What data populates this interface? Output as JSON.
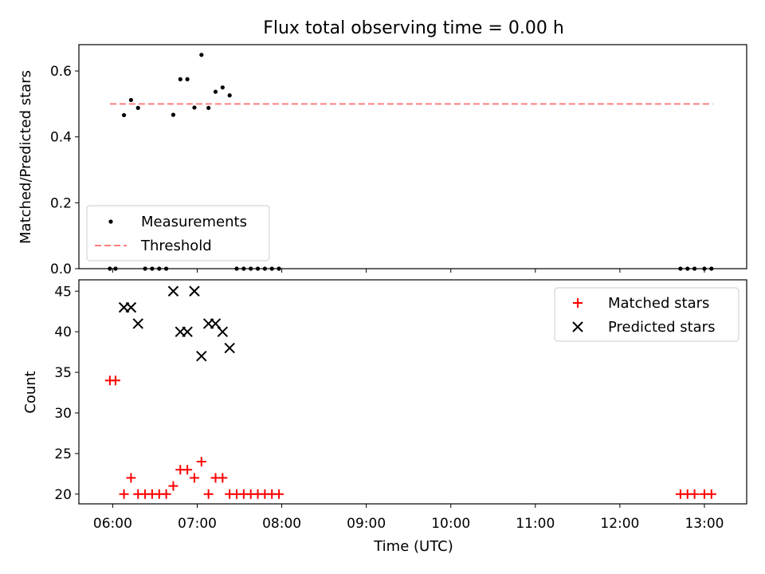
{
  "figure": {
    "title": "Flux total observing time = 0.00 h"
  },
  "chart_data": [
    {
      "type": "scatter",
      "ylabel": "Matched/Predicted stars",
      "xlim": [
        "05:36",
        "13:30"
      ],
      "ylim": [
        0,
        0.68
      ],
      "yticks": [
        0.0,
        0.2,
        0.4,
        0.6
      ],
      "ytick_labels": [
        "0.0",
        "0.2",
        "0.4",
        "0.6"
      ],
      "grid": false,
      "legend_position": "lower-left",
      "series": [
        {
          "name": "Measurements",
          "marker": "dot",
          "color": "#000000",
          "points": [
            [
              "05:58",
              0.0
            ],
            [
              "06:02",
              0.0
            ],
            [
              "06:08",
              0.466
            ],
            [
              "06:13",
              0.512
            ],
            [
              "06:18",
              0.488
            ],
            [
              "06:23",
              0.0
            ],
            [
              "06:28",
              0.0
            ],
            [
              "06:33",
              0.0
            ],
            [
              "06:38",
              0.0
            ],
            [
              "06:43",
              0.467
            ],
            [
              "06:48",
              0.575
            ],
            [
              "06:53",
              0.575
            ],
            [
              "06:58",
              0.489
            ],
            [
              "07:03",
              0.649
            ],
            [
              "07:08",
              0.488
            ],
            [
              "07:13",
              0.537
            ],
            [
              "07:18",
              0.55
            ],
            [
              "07:23",
              0.526
            ],
            [
              "07:28",
              0.0
            ],
            [
              "07:33",
              0.0
            ],
            [
              "07:38",
              0.0
            ],
            [
              "07:43",
              0.0
            ],
            [
              "07:48",
              0.0
            ],
            [
              "07:53",
              0.0
            ],
            [
              "07:58",
              0.0
            ],
            [
              "12:43",
              0.0
            ],
            [
              "12:48",
              0.0
            ],
            [
              "12:53",
              0.0
            ],
            [
              "13:00",
              0.0
            ],
            [
              "13:05",
              0.0
            ]
          ]
        },
        {
          "name": "Threshold",
          "style": "dashed",
          "color": "#ff7f7f",
          "points": [
            [
              "05:58",
              0.5
            ],
            [
              "13:06",
              0.5
            ]
          ]
        }
      ]
    },
    {
      "type": "scatter",
      "xlabel": "Time (UTC)",
      "ylabel": "Count",
      "xlim": [
        "05:36",
        "13:30"
      ],
      "ylim": [
        18.8,
        46.4
      ],
      "xtick_labels": [
        "06:00",
        "07:00",
        "08:00",
        "09:00",
        "10:00",
        "11:00",
        "12:00",
        "13:00"
      ],
      "yticks": [
        20,
        25,
        30,
        35,
        40,
        45
      ],
      "ytick_labels": [
        "20",
        "25",
        "30",
        "35",
        "40",
        "45"
      ],
      "grid": false,
      "legend_position": "upper-right",
      "series": [
        {
          "name": "Matched stars",
          "marker": "plus",
          "color": "#ff0000",
          "points": [
            [
              "05:58",
              34
            ],
            [
              "06:02",
              34
            ],
            [
              "06:08",
              20
            ],
            [
              "06:13",
              22
            ],
            [
              "06:18",
              20
            ],
            [
              "06:23",
              20
            ],
            [
              "06:28",
              20
            ],
            [
              "06:33",
              20
            ],
            [
              "06:38",
              20
            ],
            [
              "06:43",
              21
            ],
            [
              "06:48",
              23
            ],
            [
              "06:53",
              23
            ],
            [
              "06:58",
              22
            ],
            [
              "07:03",
              24
            ],
            [
              "07:08",
              20
            ],
            [
              "07:13",
              22
            ],
            [
              "07:18",
              22
            ],
            [
              "07:23",
              20
            ],
            [
              "07:28",
              20
            ],
            [
              "07:33",
              20
            ],
            [
              "07:38",
              20
            ],
            [
              "07:43",
              20
            ],
            [
              "07:48",
              20
            ],
            [
              "07:53",
              20
            ],
            [
              "07:58",
              20
            ],
            [
              "12:43",
              20
            ],
            [
              "12:48",
              20
            ],
            [
              "12:53",
              20
            ],
            [
              "13:00",
              20
            ],
            [
              "13:05",
              20
            ]
          ]
        },
        {
          "name": "Predicted stars",
          "marker": "x",
          "color": "#000000",
          "points": [
            [
              "06:08",
              43
            ],
            [
              "06:13",
              43
            ],
            [
              "06:18",
              41
            ],
            [
              "06:43",
              45
            ],
            [
              "06:48",
              40
            ],
            [
              "06:53",
              40
            ],
            [
              "06:58",
              45
            ],
            [
              "07:03",
              37
            ],
            [
              "07:08",
              41
            ],
            [
              "07:13",
              41
            ],
            [
              "07:18",
              40
            ],
            [
              "07:23",
              38
            ]
          ]
        }
      ]
    }
  ]
}
